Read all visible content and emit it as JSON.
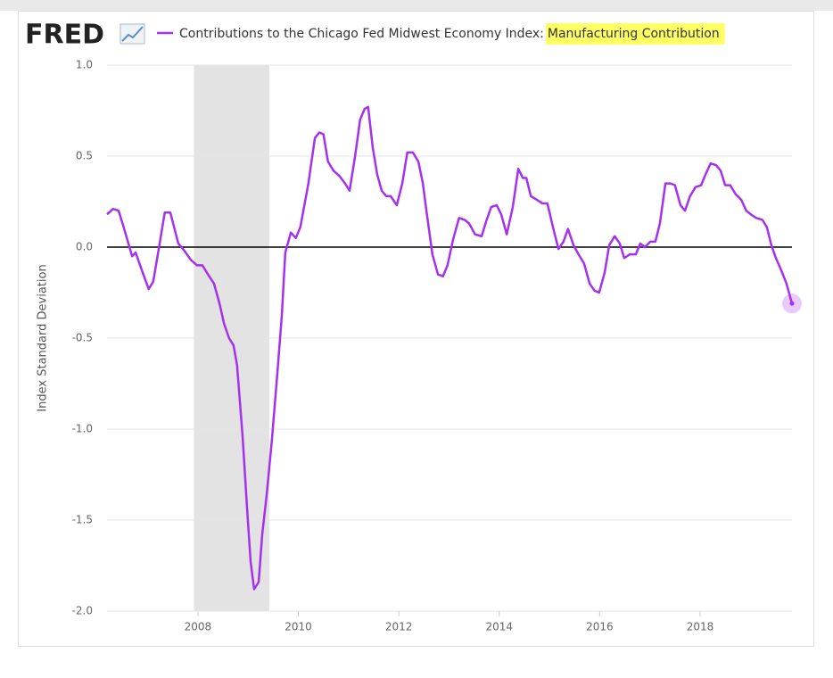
{
  "chart_data": {
    "type": "line",
    "logo": "FRED",
    "ylabel": "Index Standard Deviation",
    "series": [
      {
        "name": "Contributions to the Chicago Fed Midwest Economy Index:",
        "name_highlight": "Manufacturing Contribution",
        "color": "#a531f0",
        "x": [
          2006.19,
          2006.31,
          2006.42,
          2006.51,
          2006.69,
          2006.76,
          2006.9,
          2007.02,
          2007.11,
          2007.22,
          2007.34,
          2007.45,
          2007.61,
          2007.73,
          2007.86,
          2007.98,
          2008.09,
          2008.2,
          2008.32,
          2008.43,
          2008.52,
          2008.62,
          2008.71,
          2008.78,
          2008.89,
          2008.98,
          2009.05,
          2009.12,
          2009.21,
          2009.28,
          2009.37,
          2009.47,
          2009.58,
          2009.67,
          2009.74,
          2009.85,
          2009.95,
          2010.04,
          2010.2,
          2010.33,
          2010.42,
          2010.5,
          2010.59,
          2010.7,
          2010.82,
          2010.93,
          2011.02,
          2011.13,
          2011.23,
          2011.32,
          2011.39,
          2011.48,
          2011.57,
          2011.66,
          2011.75,
          2011.84,
          2011.96,
          2012.07,
          2012.17,
          2012.28,
          2012.39,
          2012.48,
          2012.56,
          2012.67,
          2012.78,
          2012.88,
          2012.97,
          2013.08,
          2013.2,
          2013.31,
          2013.4,
          2013.52,
          2013.65,
          2013.75,
          2013.84,
          2013.95,
          2014.04,
          2014.15,
          2014.27,
          2014.38,
          2014.47,
          2014.54,
          2014.63,
          2014.75,
          2014.86,
          2014.96,
          2015.07,
          2015.18,
          2015.28,
          2015.37,
          2015.48,
          2015.58,
          2015.69,
          2015.8,
          2015.9,
          2015.99,
          2016.1,
          2016.19,
          2016.3,
          2016.4,
          2016.49,
          2016.6,
          2016.72,
          2016.81,
          2016.9,
          2017.01,
          2017.11,
          2017.2,
          2017.31,
          2017.41,
          2017.5,
          2017.61,
          2017.7,
          2017.8,
          2017.91,
          2018.02,
          2018.11,
          2018.21,
          2018.32,
          2018.41,
          2018.5,
          2018.6,
          2018.71,
          2018.82,
          2018.92,
          2019.01,
          2019.12,
          2019.24,
          2019.33,
          2019.42,
          2019.51,
          2019.62,
          2019.72,
          2019.83
        ],
        "values": [
          0.18,
          0.21,
          0.2,
          0.12,
          -0.05,
          -0.03,
          -0.14,
          -0.23,
          -0.19,
          -0.01,
          0.19,
          0.19,
          0.02,
          -0.02,
          -0.07,
          -0.1,
          -0.1,
          -0.15,
          -0.2,
          -0.31,
          -0.42,
          -0.5,
          -0.54,
          -0.65,
          -1.04,
          -1.44,
          -1.73,
          -1.88,
          -1.84,
          -1.58,
          -1.36,
          -1.07,
          -0.7,
          -0.38,
          -0.03,
          0.08,
          0.05,
          0.11,
          0.35,
          0.6,
          0.63,
          0.62,
          0.47,
          0.42,
          0.39,
          0.35,
          0.31,
          0.5,
          0.7,
          0.76,
          0.77,
          0.55,
          0.4,
          0.31,
          0.28,
          0.28,
          0.23,
          0.35,
          0.52,
          0.52,
          0.47,
          0.35,
          0.18,
          -0.04,
          -0.15,
          -0.16,
          -0.1,
          0.04,
          0.16,
          0.15,
          0.13,
          0.07,
          0.06,
          0.15,
          0.22,
          0.23,
          0.18,
          0.07,
          0.22,
          0.43,
          0.38,
          0.38,
          0.28,
          0.26,
          0.24,
          0.24,
          0.11,
          -0.01,
          0.03,
          0.1,
          0.01,
          -0.04,
          -0.09,
          -0.2,
          -0.24,
          -0.25,
          -0.14,
          0.01,
          0.06,
          0.02,
          -0.06,
          -0.04,
          -0.04,
          0.02,
          0,
          0.03,
          0.03,
          0.13,
          0.35,
          0.35,
          0.34,
          0.23,
          0.2,
          0.28,
          0.33,
          0.34,
          0.4,
          0.46,
          0.45,
          0.42,
          0.34,
          0.34,
          0.29,
          0.26,
          0.2,
          0.18,
          0.16,
          0.15,
          0.11,
          0.01,
          -0.06,
          -0.13,
          -0.2,
          -0.31
        ]
      }
    ],
    "recession": [
      2007.92,
      2009.42
    ],
    "xlim": [
      2006.19,
      2019.83
    ],
    "xticks": [
      2008,
      2010,
      2012,
      2014,
      2016,
      2018
    ],
    "ylim": [
      -2.0,
      1.0
    ],
    "yticks": [
      {
        "value": 1.0,
        "label": "1.0"
      },
      {
        "value": 0.5,
        "label": "0.5"
      },
      {
        "value": 0,
        "label": "0.0"
      },
      {
        "value": -0.5,
        "label": "-0.5"
      },
      {
        "value": -1.0,
        "label": "-1.0"
      },
      {
        "value": -1.5,
        "label": "-1.5"
      },
      {
        "value": -2.0,
        "label": "-2.0"
      }
    ],
    "grid": true
  }
}
